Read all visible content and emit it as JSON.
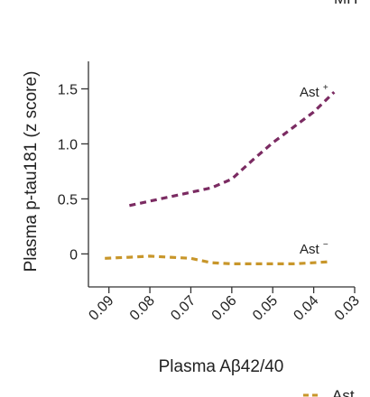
{
  "chart_data": {
    "type": "line",
    "xlabel": "Plasma Aβ42/40",
    "ylabel": "Plasma p-tau181 (z score)",
    "x_axis_reversed": true,
    "xlim": [
      0.095,
      0.03
    ],
    "ylim": [
      -0.3,
      1.75
    ],
    "x_ticks": [
      0.09,
      0.08,
      0.07,
      0.06,
      0.05,
      0.04,
      0.03
    ],
    "x_tick_labels": [
      "0.09",
      "0.08",
      "0.07",
      "0.06",
      "0.05",
      "0.04",
      "0.03"
    ],
    "y_ticks": [
      0,
      0.5,
      1.0,
      1.5
    ],
    "y_tick_labels": [
      "0",
      "0.5",
      "1.0",
      "1.5"
    ],
    "grid": false,
    "line_style": "dashed",
    "series": [
      {
        "name": "Ast",
        "superscript": "+",
        "color": "#7b2b62",
        "x": [
          0.085,
          0.075,
          0.065,
          0.06,
          0.055,
          0.05,
          0.045,
          0.04,
          0.035
        ],
        "y": [
          0.44,
          0.52,
          0.6,
          0.68,
          0.85,
          1.01,
          1.15,
          1.29,
          1.47
        ]
      },
      {
        "name": "Ast",
        "superscript": "−",
        "color": "#c8962a",
        "x": [
          0.091,
          0.085,
          0.08,
          0.075,
          0.07,
          0.065,
          0.06,
          0.055,
          0.05,
          0.045,
          0.04,
          0.036
        ],
        "y": [
          -0.04,
          -0.03,
          -0.02,
          -0.03,
          -0.04,
          -0.08,
          -0.09,
          -0.09,
          -0.09,
          -0.09,
          -0.08,
          -0.07
        ]
      }
    ]
  },
  "cut_texts": {
    "top_right": "MH",
    "bottom_right": "Ast"
  }
}
